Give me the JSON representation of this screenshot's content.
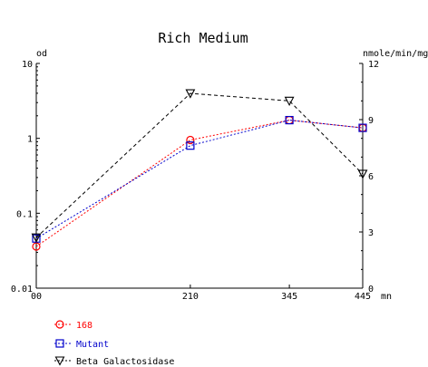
{
  "chart_data": {
    "type": "line",
    "title": "Rich Medium",
    "xlabel": "mn",
    "ylabel_left": "od",
    "ylabel_right": "nmole/min/mg",
    "x_ticks": [
      "00",
      "210",
      "345",
      "445"
    ],
    "xlim": [
      0,
      445
    ],
    "y_left": {
      "scale": "log",
      "ylim": [
        0.01,
        10
      ],
      "ticks": [
        "0.01",
        "0.1",
        "1",
        "10"
      ]
    },
    "y_right": {
      "scale": "linear",
      "ylim": [
        0,
        12
      ],
      "ticks": [
        "0",
        "3",
        "6",
        "9",
        "12"
      ]
    },
    "grid": false,
    "legend_position": "bottom-left",
    "series": [
      {
        "name": "168",
        "axis": "left",
        "color": "#ff0000",
        "marker": "circle",
        "linestyle": "dotted",
        "x": [
          0,
          210,
          345,
          445
        ],
        "y": [
          0.036,
          0.95,
          1.75,
          1.38
        ]
      },
      {
        "name": "Mutant",
        "axis": "left",
        "color": "#0000cc",
        "marker": "square",
        "linestyle": "dotted",
        "x": [
          0,
          210,
          345,
          445
        ],
        "y": [
          0.046,
          0.8,
          1.75,
          1.38
        ]
      },
      {
        "name": "Beta Galactosidase",
        "axis": "right",
        "color": "#000000",
        "marker": "triangle-down",
        "linestyle": "dashed",
        "x": [
          0,
          210,
          345,
          445
        ],
        "y": [
          2.7,
          10.4,
          10.0,
          6.1
        ]
      }
    ]
  }
}
